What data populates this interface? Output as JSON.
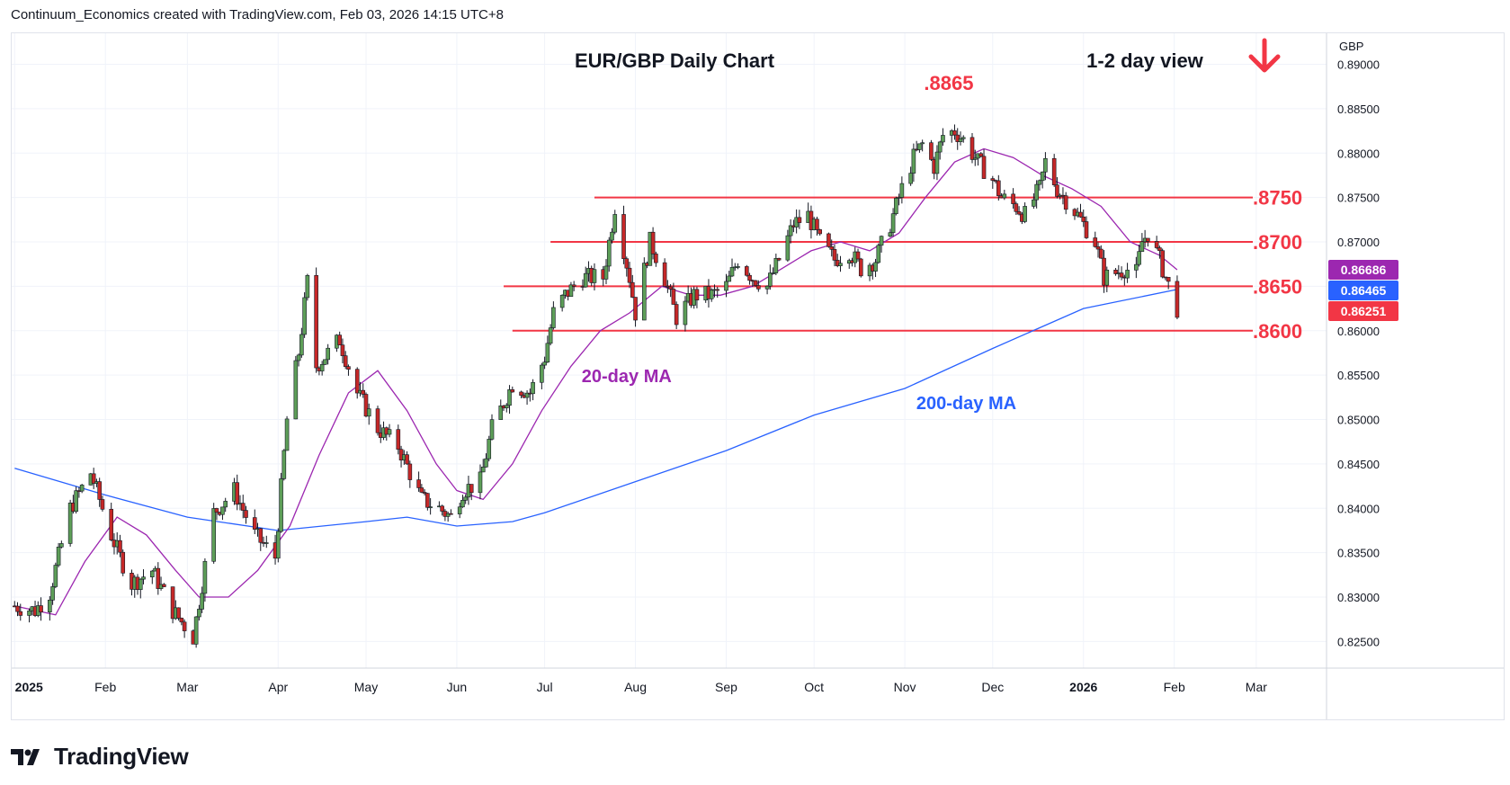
{
  "header": {
    "attribution": "Continuum_Economics created with TradingView.com, Feb 03, 2026 14:15 UTC+8"
  },
  "brand": {
    "name": "TradingView",
    "icon": "tradingview-logo-icon"
  },
  "chart_data": {
    "type": "candlestick",
    "title": "EUR/GBP Daily Chart",
    "subtitle": "1-2 day view",
    "direction_icon": "arrow-down-icon",
    "currency_label": "GBP",
    "ylim": [
      0.822,
      0.8935
    ],
    "yticks": [
      0.825,
      0.83,
      0.835,
      0.84,
      0.845,
      0.85,
      0.855,
      0.86,
      0.865,
      0.87,
      0.875,
      0.88,
      0.885,
      0.89
    ],
    "ytick_labels": [
      "0.82500",
      "0.83000",
      "0.83500",
      "0.84000",
      "0.84500",
      "0.85000",
      "0.85500",
      "0.86000",
      "0.86500",
      "0.87000",
      "0.87500",
      "0.88000",
      "0.88500",
      "0.89000"
    ],
    "xlim": [
      "2024-12-31",
      "2026-03-25"
    ],
    "xticks": [
      {
        "date": "2025-01-01",
        "label": "2025",
        "bold": true
      },
      {
        "date": "2025-02-01",
        "label": "Feb"
      },
      {
        "date": "2025-03-01",
        "label": "Mar"
      },
      {
        "date": "2025-04-01",
        "label": "Apr"
      },
      {
        "date": "2025-05-01",
        "label": "May"
      },
      {
        "date": "2025-06-01",
        "label": "Jun"
      },
      {
        "date": "2025-07-01",
        "label": "Jul"
      },
      {
        "date": "2025-08-01",
        "label": "Aug"
      },
      {
        "date": "2025-09-01",
        "label": "Sep"
      },
      {
        "date": "2025-10-01",
        "label": "Oct"
      },
      {
        "date": "2025-11-01",
        "label": "Nov"
      },
      {
        "date": "2025-12-01",
        "label": "Dec"
      },
      {
        "date": "2026-01-01",
        "label": "2026",
        "bold": true
      },
      {
        "date": "2026-02-01",
        "label": "Feb"
      },
      {
        "date": "2026-03-01",
        "label": "Mar"
      }
    ],
    "grid": true,
    "colors": {
      "up": "#5d9e58",
      "down": "#c62828",
      "wick": "#131722",
      "ma20": "#9c27b0",
      "ma200": "#2962ff",
      "level": "#f23645",
      "text": "#131722"
    },
    "levels": [
      {
        "value": 0.875,
        "label": ".8750",
        "from": "2025-07-18"
      },
      {
        "value": 0.87,
        "label": ".8700",
        "from": "2025-07-03"
      },
      {
        "value": 0.865,
        "label": ".8650",
        "from": "2025-06-17"
      },
      {
        "value": 0.86,
        "label": ".8600",
        "from": "2025-06-20"
      }
    ],
    "annotations": [
      {
        "text": ".8865",
        "date": "2025-11-16",
        "value": 0.8865
      },
      {
        "text": "20-day MA",
        "date": "2025-07-29",
        "value": 0.855
      },
      {
        "text": "200-day MA",
        "date": "2025-11-22",
        "value": 0.852
      }
    ],
    "price_labels": [
      {
        "value": 0.86686,
        "label": "0.86686",
        "series": "20-day MA"
      },
      {
        "value": 0.86465,
        "label": "0.86465",
        "series": "200-day MA"
      },
      {
        "value": 0.86251,
        "label": "0.86251",
        "series": "EUR/GBP"
      }
    ],
    "close_path": [
      [
        "2025-01-01",
        0.829
      ],
      [
        "2025-01-08",
        0.8285
      ],
      [
        "2025-01-13",
        0.8305
      ],
      [
        "2025-01-20",
        0.84
      ],
      [
        "2025-01-27",
        0.844
      ],
      [
        "2025-02-03",
        0.837
      ],
      [
        "2025-02-06",
        0.8345
      ],
      [
        "2025-02-10",
        0.8315
      ],
      [
        "2025-02-17",
        0.833
      ],
      [
        "2025-02-24",
        0.8285
      ],
      [
        "2025-03-03",
        0.8255
      ],
      [
        "2025-03-10",
        0.8395
      ],
      [
        "2025-03-17",
        0.842
      ],
      [
        "2025-03-24",
        0.837
      ],
      [
        "2025-03-31",
        0.8345
      ],
      [
        "2025-04-04",
        0.85
      ],
      [
        "2025-04-08",
        0.8575
      ],
      [
        "2025-04-11",
        0.8655
      ],
      [
        "2025-04-14",
        0.856
      ],
      [
        "2025-04-22",
        0.859
      ],
      [
        "2025-04-28",
        0.853
      ],
      [
        "2025-05-05",
        0.849
      ],
      [
        "2025-05-12",
        0.847
      ],
      [
        "2025-05-16",
        0.844
      ],
      [
        "2025-05-20",
        0.841
      ],
      [
        "2025-05-26",
        0.84
      ],
      [
        "2025-05-30",
        0.839
      ],
      [
        "2025-06-03",
        0.842
      ],
      [
        "2025-06-09",
        0.843
      ],
      [
        "2025-06-13",
        0.849
      ],
      [
        "2025-06-20",
        0.854
      ],
      [
        "2025-06-26",
        0.853
      ],
      [
        "2025-07-01",
        0.857
      ],
      [
        "2025-07-04",
        0.862
      ],
      [
        "2025-07-08",
        0.864
      ],
      [
        "2025-07-14",
        0.866
      ],
      [
        "2025-07-21",
        0.866
      ],
      [
        "2025-07-25",
        0.874
      ],
      [
        "2025-07-30",
        0.866
      ],
      [
        "2025-08-01",
        0.862
      ],
      [
        "2025-08-06",
        0.87
      ],
      [
        "2025-08-10",
        0.867
      ],
      [
        "2025-08-15",
        0.8615
      ],
      [
        "2025-08-21",
        0.864
      ],
      [
        "2025-08-27",
        0.864
      ],
      [
        "2025-09-01",
        0.865
      ],
      [
        "2025-09-05",
        0.868
      ],
      [
        "2025-09-10",
        0.866
      ],
      [
        "2025-09-15",
        0.865
      ],
      [
        "2025-09-19",
        0.868
      ],
      [
        "2025-09-24",
        0.872
      ],
      [
        "2025-09-29",
        0.873
      ],
      [
        "2025-10-03",
        0.87
      ],
      [
        "2025-10-08",
        0.868
      ],
      [
        "2025-10-13",
        0.869
      ],
      [
        "2025-10-17",
        0.867
      ],
      [
        "2025-10-22",
        0.868
      ],
      [
        "2025-10-27",
        0.872
      ],
      [
        "2025-10-31",
        0.876
      ],
      [
        "2025-11-04",
        0.8795
      ],
      [
        "2025-11-07",
        0.881
      ],
      [
        "2025-11-11",
        0.8785
      ],
      [
        "2025-11-14",
        0.882
      ],
      [
        "2025-11-18",
        0.8825
      ],
      [
        "2025-11-21",
        0.8815
      ],
      [
        "2025-11-26",
        0.879
      ],
      [
        "2025-12-01",
        0.877
      ],
      [
        "2025-12-04",
        0.875
      ],
      [
        "2025-12-09",
        0.874
      ],
      [
        "2025-12-12",
        0.873
      ],
      [
        "2025-12-17",
        0.876
      ],
      [
        "2025-12-19",
        0.879
      ],
      [
        "2025-12-23",
        0.876
      ],
      [
        "2025-12-29",
        0.8735
      ],
      [
        "2026-01-02",
        0.8715
      ],
      [
        "2026-01-05",
        0.87
      ],
      [
        "2026-01-08",
        0.866
      ],
      [
        "2026-01-12",
        0.8665
      ],
      [
        "2026-01-15",
        0.867
      ],
      [
        "2026-01-19",
        0.8665
      ],
      [
        "2026-01-21",
        0.87
      ],
      [
        "2026-01-23",
        0.871
      ],
      [
        "2026-01-27",
        0.868
      ],
      [
        "2026-01-29",
        0.866
      ],
      [
        "2026-02-02",
        0.8625
      ]
    ],
    "ma20": [
      [
        "2025-01-01",
        0.829
      ],
      [
        "2025-01-15",
        0.828
      ],
      [
        "2025-01-25",
        0.834
      ],
      [
        "2025-02-05",
        0.839
      ],
      [
        "2025-02-15",
        0.837
      ],
      [
        "2025-02-25",
        0.833
      ],
      [
        "2025-03-05",
        0.83
      ],
      [
        "2025-03-15",
        0.83
      ],
      [
        "2025-03-25",
        0.833
      ],
      [
        "2025-04-05",
        0.838
      ],
      [
        "2025-04-15",
        0.846
      ],
      [
        "2025-04-25",
        0.853
      ],
      [
        "2025-05-05",
        0.8555
      ],
      [
        "2025-05-15",
        0.851
      ],
      [
        "2025-05-25",
        0.845
      ],
      [
        "2025-06-01",
        0.842
      ],
      [
        "2025-06-10",
        0.841
      ],
      [
        "2025-06-20",
        0.845
      ],
      [
        "2025-06-30",
        0.851
      ],
      [
        "2025-07-10",
        0.856
      ],
      [
        "2025-07-20",
        0.86
      ],
      [
        "2025-07-30",
        0.862
      ],
      [
        "2025-08-10",
        0.865
      ],
      [
        "2025-08-20",
        0.864
      ],
      [
        "2025-08-30",
        0.864
      ],
      [
        "2025-09-10",
        0.865
      ],
      [
        "2025-09-20",
        0.867
      ],
      [
        "2025-09-30",
        0.869
      ],
      [
        "2025-10-10",
        0.87
      ],
      [
        "2025-10-20",
        0.869
      ],
      [
        "2025-10-30",
        0.871
      ],
      [
        "2025-11-08",
        0.875
      ],
      [
        "2025-11-18",
        0.879
      ],
      [
        "2025-11-28",
        0.8805
      ],
      [
        "2025-12-08",
        0.8795
      ],
      [
        "2025-12-18",
        0.8775
      ],
      [
        "2025-12-28",
        0.876
      ],
      [
        "2026-01-07",
        0.874
      ],
      [
        "2026-01-17",
        0.87
      ],
      [
        "2026-01-27",
        0.8685
      ],
      [
        "2026-02-02",
        0.86686
      ]
    ],
    "ma200": [
      [
        "2025-01-01",
        0.8445
      ],
      [
        "2025-02-01",
        0.8415
      ],
      [
        "2025-03-01",
        0.839
      ],
      [
        "2025-04-01",
        0.8375
      ],
      [
        "2025-05-01",
        0.8385
      ],
      [
        "2025-05-15",
        0.839
      ],
      [
        "2025-06-01",
        0.838
      ],
      [
        "2025-06-20",
        0.8385
      ],
      [
        "2025-07-01",
        0.8395
      ],
      [
        "2025-08-01",
        0.843
      ],
      [
        "2025-09-01",
        0.8465
      ],
      [
        "2025-10-01",
        0.8505
      ],
      [
        "2025-11-01",
        0.8535
      ],
      [
        "2025-12-01",
        0.858
      ],
      [
        "2026-01-01",
        0.8625
      ],
      [
        "2026-02-02",
        0.86465
      ]
    ]
  }
}
